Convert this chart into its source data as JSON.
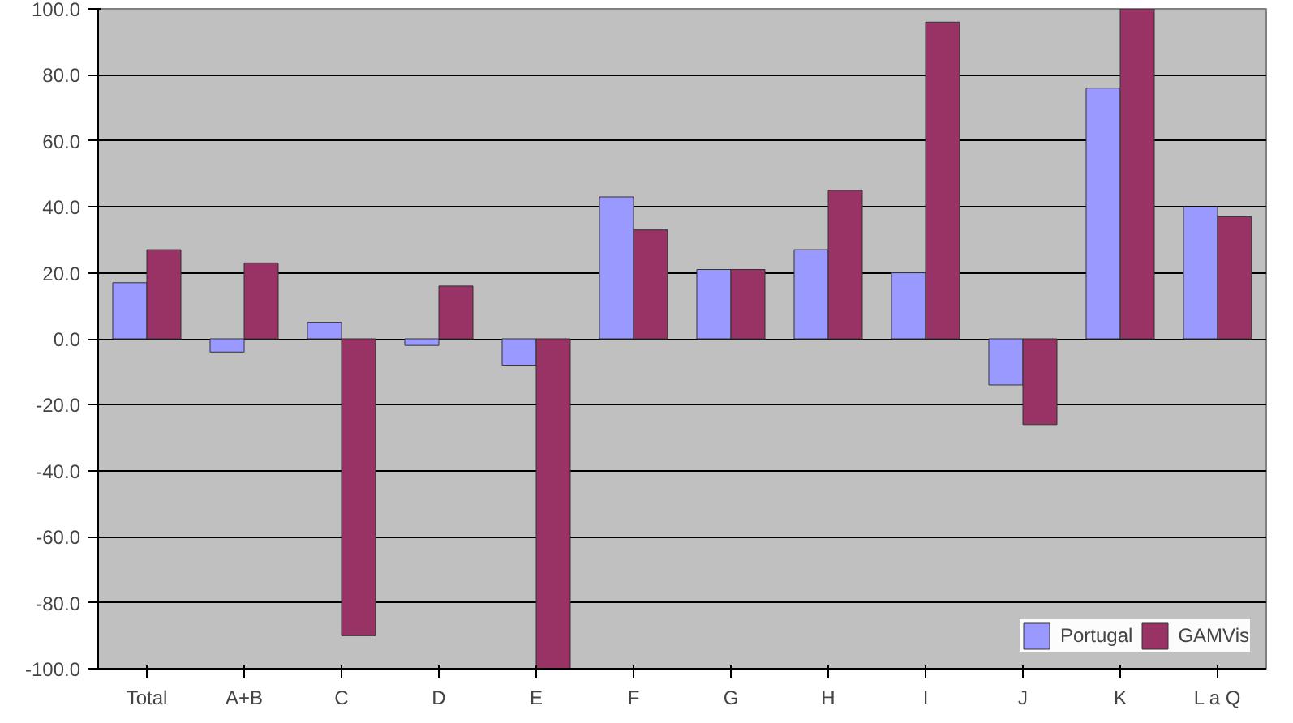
{
  "chart_data": {
    "type": "bar",
    "categories": [
      "Total",
      "A+B",
      "C",
      "D",
      "E",
      "F",
      "G",
      "H",
      "I",
      "J",
      "K",
      "L a Q"
    ],
    "series": [
      {
        "name": "Portugal",
        "color": "#9999ff",
        "values": [
          17,
          -4,
          5,
          -2,
          -8,
          43,
          21,
          27,
          20,
          -14,
          76,
          40
        ]
      },
      {
        "name": "GAMVis",
        "color": "#993366",
        "values": [
          27,
          23,
          -90,
          16,
          -100,
          33,
          21,
          45,
          96,
          -26,
          100,
          37
        ]
      }
    ],
    "ylim": [
      -100,
      100
    ],
    "yticks": [
      {
        "value": -100,
        "label": "-100.0"
      },
      {
        "value": -80,
        "label": "-80.0"
      },
      {
        "value": -60,
        "label": "-60.0"
      },
      {
        "value": -40,
        "label": "-40.0"
      },
      {
        "value": -20,
        "label": "-20.0"
      },
      {
        "value": 0,
        "label": "0.0"
      },
      {
        "value": 20,
        "label": "20.0"
      },
      {
        "value": 40,
        "label": "40.0"
      },
      {
        "value": 60,
        "label": "60.0"
      },
      {
        "value": 80,
        "label": "80.0"
      },
      {
        "value": 100,
        "label": "100.0"
      }
    ],
    "grid": "y",
    "legend": "bottom right"
  }
}
